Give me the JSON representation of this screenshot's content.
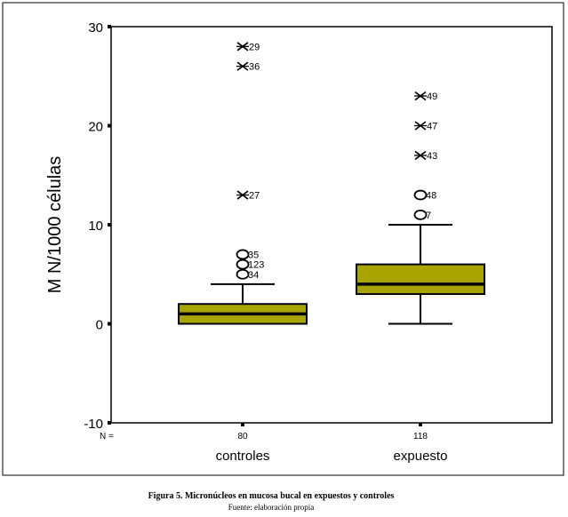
{
  "chart_data": {
    "type": "box",
    "ylabel": "M N/1000 células",
    "ylim": [
      -10,
      30
    ],
    "yticks": [
      30,
      20,
      10,
      0,
      -10
    ],
    "n_label": "N =",
    "grid": false,
    "box_color": "#a8a400",
    "categories": [
      "controles",
      "expuesto"
    ],
    "n": [
      "80",
      "118"
    ],
    "boxes": [
      {
        "name": "controles",
        "whisker_low": 0,
        "q1": 0,
        "median": 1,
        "q3": 2,
        "whisker_high": 4,
        "outliers": [
          {
            "value": 7,
            "label": "35"
          },
          {
            "value": 6,
            "label": "123"
          },
          {
            "value": 5,
            "label": "34"
          }
        ],
        "extremes": [
          {
            "value": 28,
            "label": "29"
          },
          {
            "value": 26,
            "label": "36"
          },
          {
            "value": 13,
            "label": "27"
          }
        ]
      },
      {
        "name": "expuesto",
        "whisker_low": 0,
        "q1": 3,
        "median": 4,
        "q3": 6,
        "whisker_high": 10,
        "outliers": [
          {
            "value": 13,
            "label": "48"
          },
          {
            "value": 11,
            "label": "7"
          }
        ],
        "extremes": [
          {
            "value": 23,
            "label": "49"
          },
          {
            "value": 20,
            "label": "47"
          },
          {
            "value": 17,
            "label": "43"
          }
        ]
      }
    ]
  },
  "caption": {
    "title": "Figura 5.  Micronúcleos en mucosa bucal en  expuestos y controles",
    "source": "Fuente: elaboración propia"
  }
}
